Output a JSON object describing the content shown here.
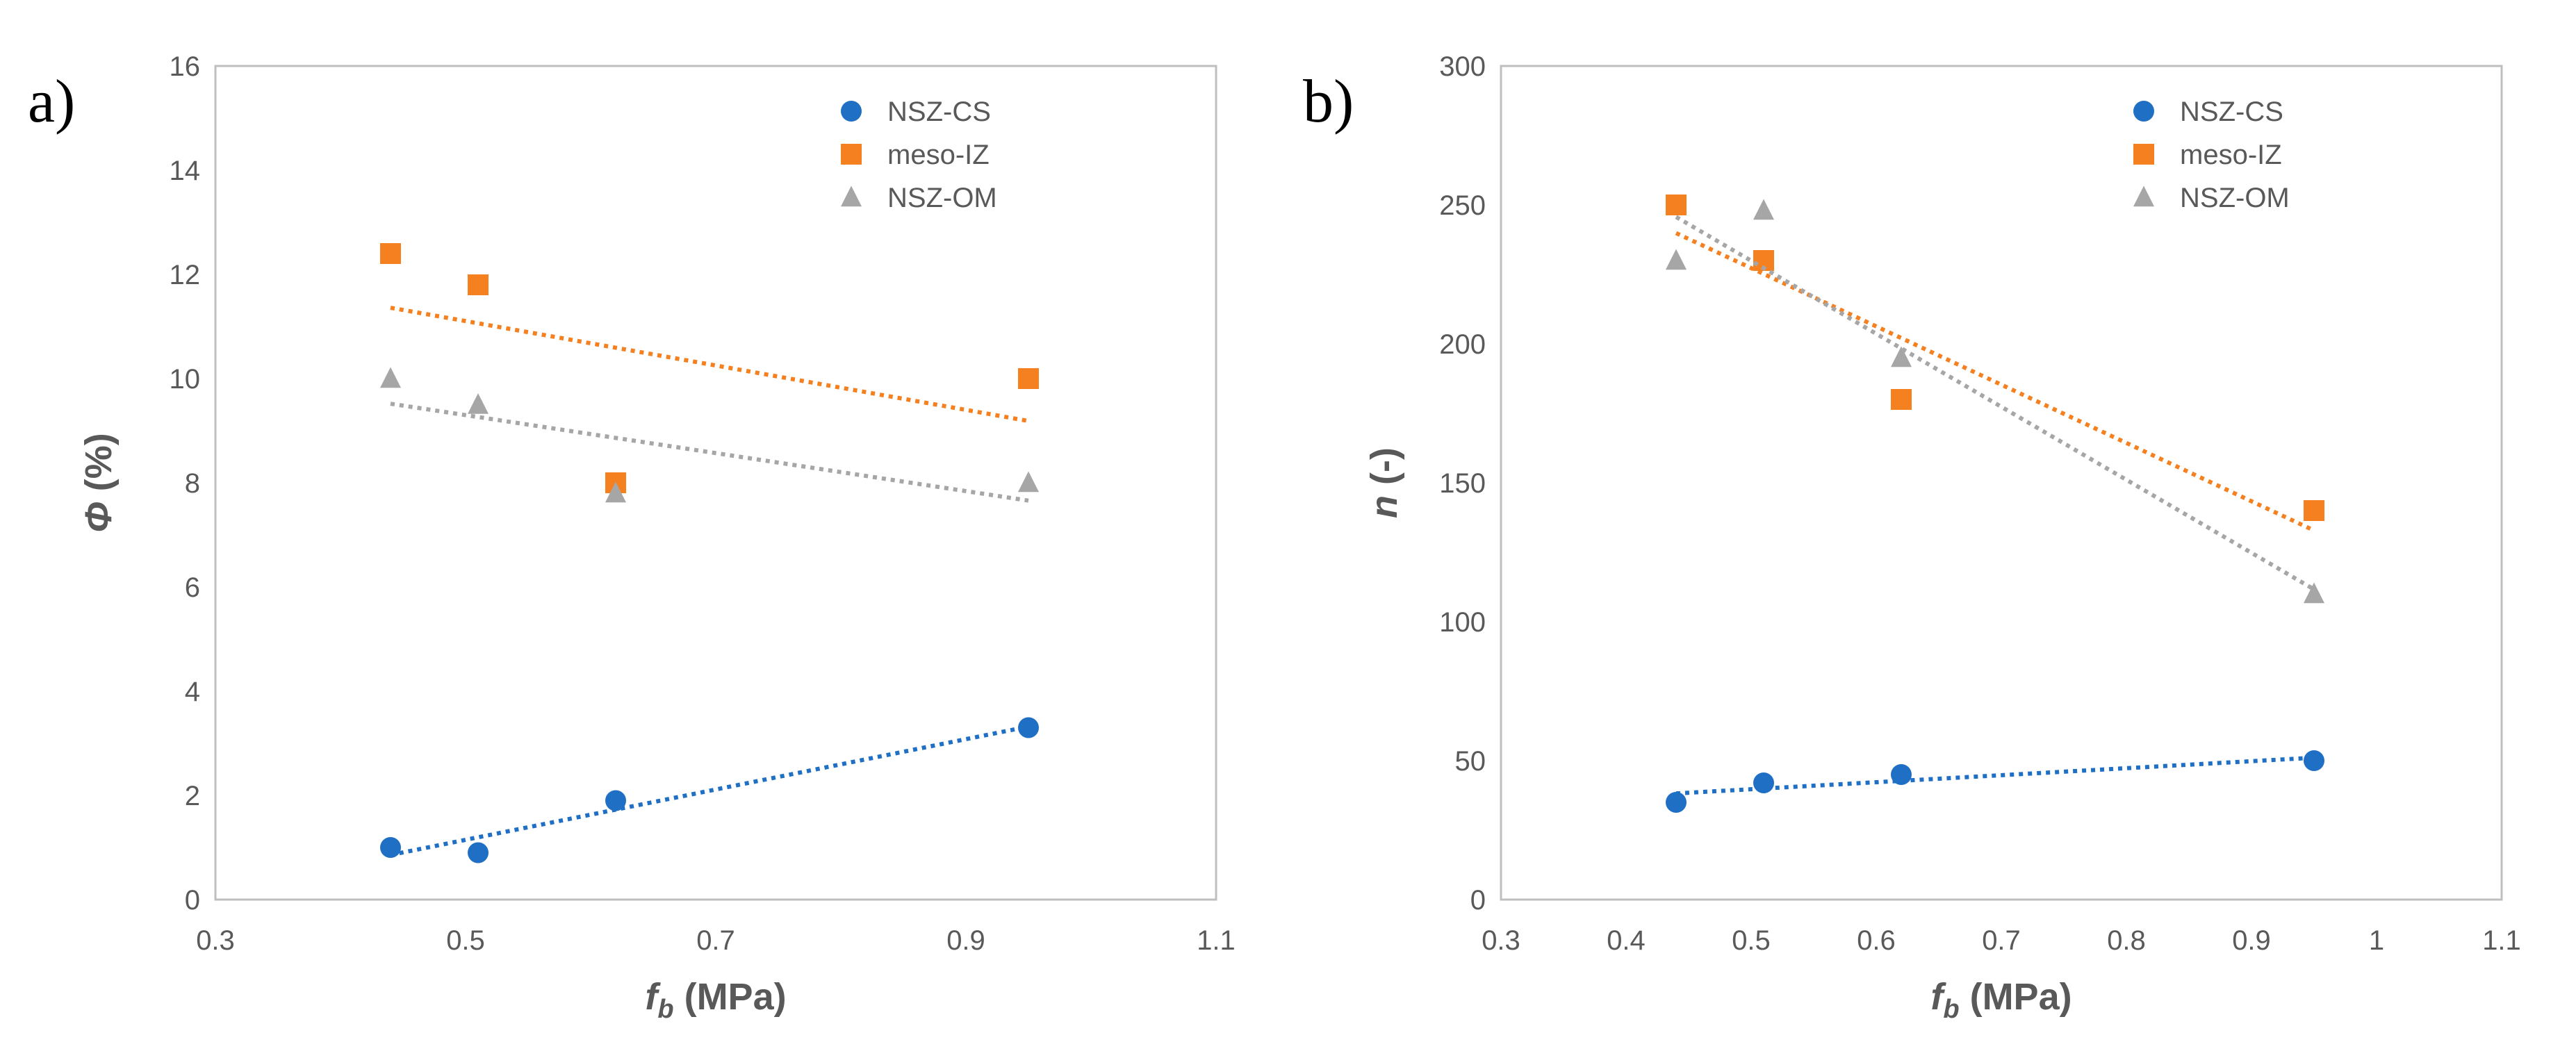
{
  "chart_data": [
    {
      "type": "scatter",
      "panel_label": "a)",
      "title": "",
      "xlabel": {
        "main": "f",
        "sub": "b",
        "rest": " (MPa)"
      },
      "ylabel": {
        "main": "Φ",
        "rest": " (%)"
      },
      "xlim": [
        0.3,
        1.1
      ],
      "ylim": [
        0,
        16
      ],
      "xticks": [
        "0.3",
        "0.5",
        "0.7",
        "0.9",
        "1.1"
      ],
      "yticks": [
        "0",
        "2",
        "4",
        "6",
        "8",
        "10",
        "12",
        "14",
        "16"
      ],
      "grid": false,
      "legend_position": "top-right",
      "trendline": "linear, dotted",
      "series": [
        {
          "name": "NSZ-CS",
          "marker": "circle",
          "color": "#1f6fc5",
          "x": [
            0.44,
            0.51,
            0.62,
            0.95
          ],
          "y": [
            1.0,
            0.9,
            1.9,
            3.3
          ]
        },
        {
          "name": "meso-IZ",
          "marker": "square",
          "color": "#f58020",
          "x": [
            0.44,
            0.51,
            0.62,
            0.95
          ],
          "y": [
            12.4,
            11.8,
            8.0,
            10.0
          ]
        },
        {
          "name": "NSZ-OM",
          "marker": "triangle",
          "color": "#a6a6a6",
          "x": [
            0.44,
            0.51,
            0.62,
            0.95
          ],
          "y": [
            10.0,
            9.5,
            7.8,
            8.0
          ]
        }
      ]
    },
    {
      "type": "scatter",
      "panel_label": "b)",
      "title": "",
      "xlabel": {
        "main": "f",
        "sub": "b",
        "rest": " (MPa)"
      },
      "ylabel": {
        "main": "n",
        "rest": " (-)"
      },
      "xlim": [
        0.3,
        1.1
      ],
      "ylim": [
        0,
        300
      ],
      "xticks": [
        "0.3",
        "0.4",
        "0.5",
        "0.6",
        "0.7",
        "0.8",
        "0.9",
        "1",
        "1.1"
      ],
      "yticks": [
        "0",
        "50",
        "100",
        "150",
        "200",
        "250",
        "300"
      ],
      "grid": false,
      "legend_position": "top-right",
      "trendline": "linear, dotted",
      "series": [
        {
          "name": "NSZ-CS",
          "marker": "circle",
          "color": "#1f6fc5",
          "x": [
            0.44,
            0.51,
            0.62,
            0.95
          ],
          "y": [
            35,
            42,
            45,
            50
          ]
        },
        {
          "name": "meso-IZ",
          "marker": "square",
          "color": "#f58020",
          "x": [
            0.44,
            0.51,
            0.62,
            0.95
          ],
          "y": [
            250,
            230,
            180,
            140
          ]
        },
        {
          "name": "NSZ-OM",
          "marker": "triangle",
          "color": "#a6a6a6",
          "x": [
            0.44,
            0.51,
            0.62,
            0.95
          ],
          "y": [
            230,
            248,
            195,
            110
          ]
        }
      ]
    }
  ]
}
